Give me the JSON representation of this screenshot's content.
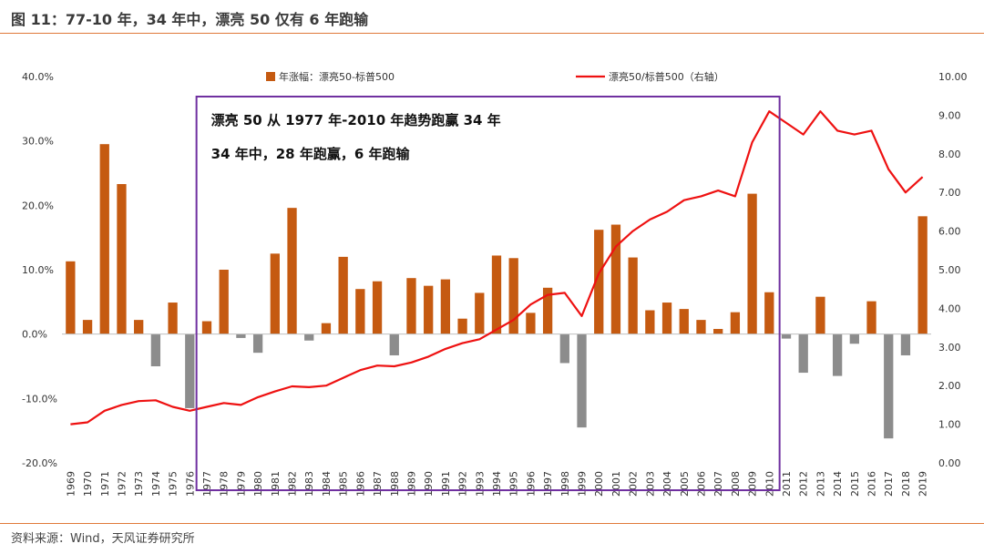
{
  "figure": {
    "title": "图 11：77-10 年，34 年中，漂亮 50 仅有 6 年跑输",
    "source": "资料来源：Wind，天风证券研究所"
  },
  "colors": {
    "positive_bar": "#c55a11",
    "negative_bar": "#8c8c8c",
    "line": "#ee1111",
    "highlight_box": "#7030a0",
    "rule": "#e07a3a"
  },
  "chart_data": {
    "type": "bar",
    "categories": [
      "1969",
      "1970",
      "1971",
      "1972",
      "1973",
      "1974",
      "1975",
      "1976",
      "1977",
      "1978",
      "1979",
      "1980",
      "1981",
      "1982",
      "1983",
      "1984",
      "1985",
      "1986",
      "1987",
      "1988",
      "1989",
      "1990",
      "1991",
      "1992",
      "1993",
      "1994",
      "1995",
      "1996",
      "1997",
      "1998",
      "1999",
      "2000",
      "2001",
      "2002",
      "2003",
      "2004",
      "2005",
      "2006",
      "2007",
      "2008",
      "2009",
      "2010",
      "2011",
      "2012",
      "2013",
      "2014",
      "2015",
      "2016",
      "2017",
      "2018",
      "2019"
    ],
    "series": [
      {
        "name": "年涨幅：漂亮50-标普500",
        "type": "bar",
        "axis": "left",
        "values": [
          11.3,
          2.2,
          29.5,
          23.3,
          2.2,
          -5.0,
          4.9,
          -11.5,
          2.0,
          10.0,
          -0.6,
          -2.9,
          12.5,
          19.6,
          -1.0,
          1.7,
          12.0,
          7.0,
          8.2,
          -3.3,
          8.7,
          7.5,
          8.5,
          2.4,
          6.4,
          12.2,
          11.8,
          3.3,
          7.2,
          -4.5,
          -14.5,
          16.2,
          17.0,
          11.9,
          3.7,
          4.9,
          3.9,
          2.2,
          0.8,
          3.4,
          21.8,
          6.5,
          -0.7,
          -6.0,
          5.8,
          -6.5,
          -1.5,
          5.1,
          -16.2,
          -3.3,
          18.3
        ]
      },
      {
        "name": "漂亮50/标普500（右轴）",
        "type": "line",
        "axis": "right",
        "values": [
          1.0,
          1.05,
          1.35,
          1.5,
          1.6,
          1.62,
          1.45,
          1.35,
          1.45,
          1.55,
          1.5,
          1.7,
          1.85,
          1.98,
          1.96,
          2.0,
          2.2,
          2.4,
          2.52,
          2.5,
          2.6,
          2.75,
          2.95,
          3.1,
          3.2,
          3.45,
          3.7,
          4.1,
          4.35,
          4.4,
          3.8,
          4.9,
          5.6,
          6.0,
          6.3,
          6.5,
          6.8,
          6.9,
          7.05,
          6.9,
          8.3,
          9.1,
          8.8,
          8.5,
          9.1,
          8.6,
          8.5,
          8.6,
          7.6,
          7.0,
          7.4
        ]
      }
    ],
    "y_left": {
      "min": -20,
      "max": 40,
      "ticks": [
        "-20.0%",
        "-10.0%",
        "0.0%",
        "10.0%",
        "20.0%",
        "30.0%",
        "40.0%"
      ]
    },
    "y_right": {
      "min": 0,
      "max": 10,
      "ticks": [
        "0.00",
        "1.00",
        "2.00",
        "3.00",
        "4.00",
        "5.00",
        "6.00",
        "7.00",
        "8.00",
        "9.00",
        "10.00"
      ]
    },
    "legend": {
      "placement": "top",
      "bar_label": "年涨幅：漂亮50-标普500",
      "line_label": "漂亮50/标普500（右轴）"
    },
    "highlight": {
      "from_category": "1977",
      "to_category": "2010",
      "lines": [
        "漂亮 50 从 1977 年-2010 年趋势跑赢 34 年",
        "34 年中，28 年跑赢，6 年跑输"
      ]
    },
    "grid": false
  }
}
